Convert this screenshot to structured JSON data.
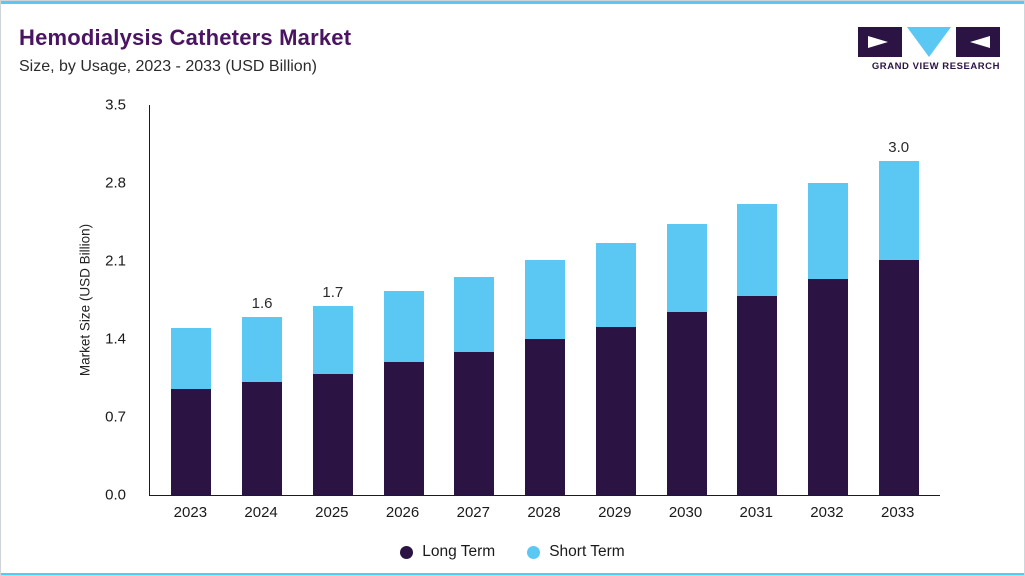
{
  "header": {
    "title": "Hemodialysis Catheters Market",
    "subtitle": "Size, by Usage, 2023 - 2033 (USD Billion)"
  },
  "brand": {
    "name": "GRAND VIEW RESEARCH"
  },
  "colors": {
    "long_term": "#2b1444",
    "short_term": "#5ac8f2",
    "title": "#4b1463",
    "accent_line": "#5ac8f2"
  },
  "chart_data": {
    "type": "bar",
    "stacked": true,
    "title": "Hemodialysis Catheters Market Size, by Usage, 2023 - 2033 (USD Billion)",
    "xlabel": "",
    "ylabel": "Market Size (USD Billion)",
    "ylim": [
      0,
      3.5
    ],
    "yticks": [
      "0.0",
      "0.7",
      "1.4",
      "2.1",
      "2.8",
      "3.5"
    ],
    "grid": false,
    "legend_position": "bottom",
    "categories": [
      "2023",
      "2024",
      "2025",
      "2026",
      "2027",
      "2028",
      "2029",
      "2030",
      "2031",
      "2032",
      "2033"
    ],
    "series": [
      {
        "name": "Long Term",
        "color": "#2b1444",
        "values": [
          0.95,
          1.01,
          1.09,
          1.19,
          1.28,
          1.4,
          1.51,
          1.64,
          1.79,
          1.94,
          2.11
        ]
      },
      {
        "name": "Short Term",
        "color": "#5ac8f2",
        "values": [
          0.55,
          0.59,
          0.61,
          0.64,
          0.68,
          0.71,
          0.75,
          0.79,
          0.82,
          0.86,
          0.89
        ]
      }
    ],
    "totals": [
      1.5,
      1.6,
      1.7,
      1.83,
      1.96,
      2.11,
      2.26,
      2.43,
      2.61,
      2.8,
      3.0
    ],
    "bar_labels": {
      "2024": "1.6",
      "2025": "1.7",
      "2033": "3.0"
    }
  }
}
